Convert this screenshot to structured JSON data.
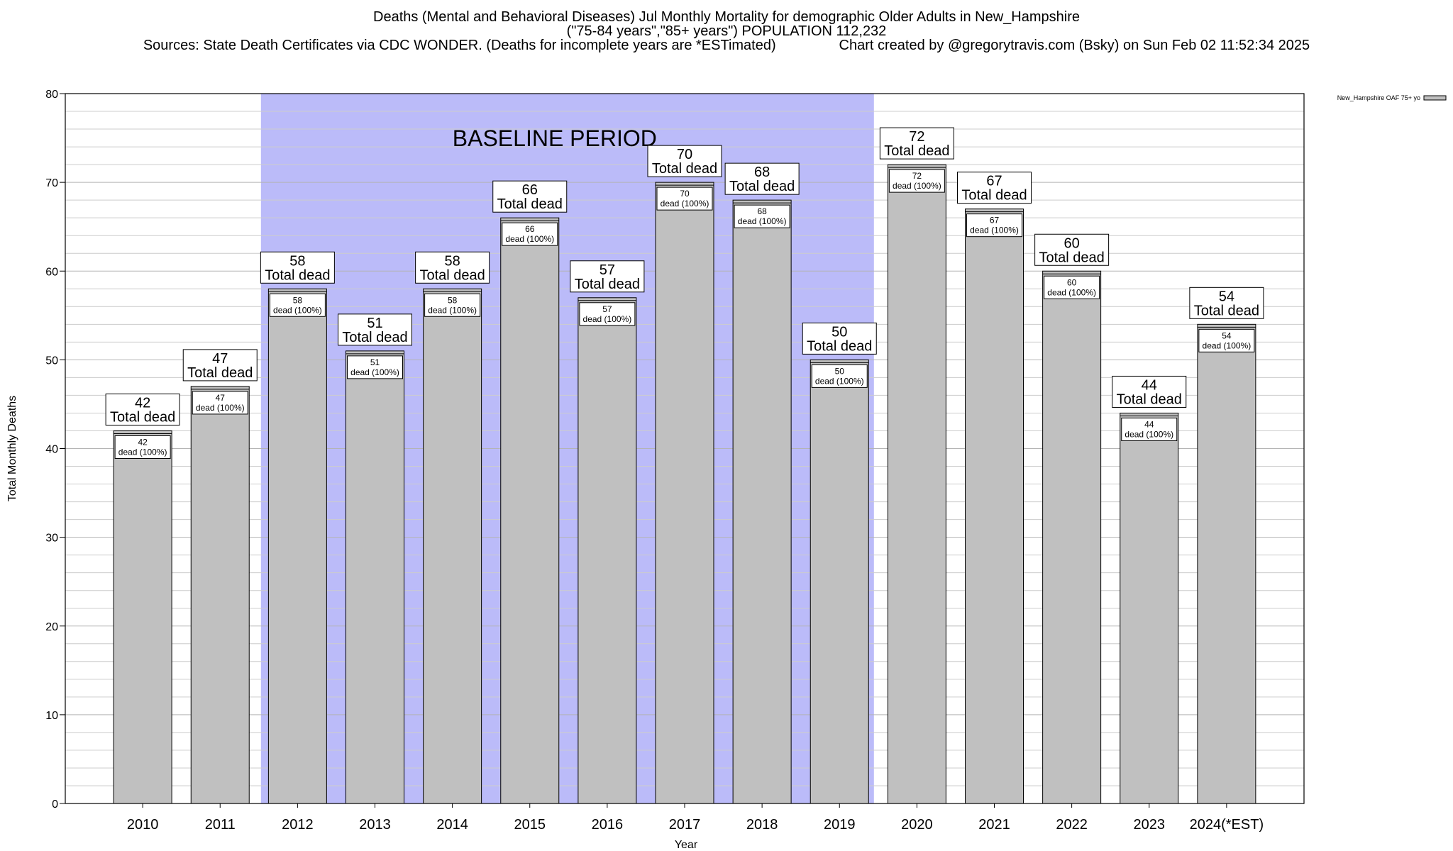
{
  "header": {
    "title_line1": "Deaths (Mental and Behavioral Diseases) Jul Monthly Mortality for demographic Older Adults in New_Hampshire",
    "title_line2": "(\"75-84 years\",\"85+ years\") POPULATION 112,232",
    "sources": "Sources: State Death Certificates via CDC WONDER. (Deaths for incomplete years are *ESTimated)",
    "credit": "Chart created by @gregorytravis.com (Bsky) on Sun Feb 02 11:52:34 2025"
  },
  "chart_data": {
    "type": "bar",
    "categories": [
      "2010",
      "2011",
      "2012",
      "2013",
      "2014",
      "2015",
      "2016",
      "2017",
      "2018",
      "2019",
      "2020",
      "2021",
      "2022",
      "2023",
      "2024(*EST)"
    ],
    "series": [
      {
        "name": "New_Hampshire OAF 75+ yo",
        "values": [
          42,
          47,
          58,
          51,
          58,
          66,
          57,
          70,
          68,
          50,
          72,
          67,
          60,
          44,
          54
        ],
        "color": "#c0c0c0"
      }
    ],
    "xlabel": "Year",
    "ylabel": "Total Monthly Deaths",
    "ylim": [
      0,
      80
    ],
    "yticks": [
      0,
      10,
      20,
      30,
      40,
      50,
      60,
      70,
      80
    ],
    "grid": true,
    "legend_position": "top-right",
    "outer_label_suffix": "Total dead",
    "inner_label_suffix": "dead (100%)",
    "baseline_period": {
      "label": "BASELINE PERIOD",
      "from": "2012",
      "to": "2019",
      "color": "#bbbbf9"
    }
  }
}
